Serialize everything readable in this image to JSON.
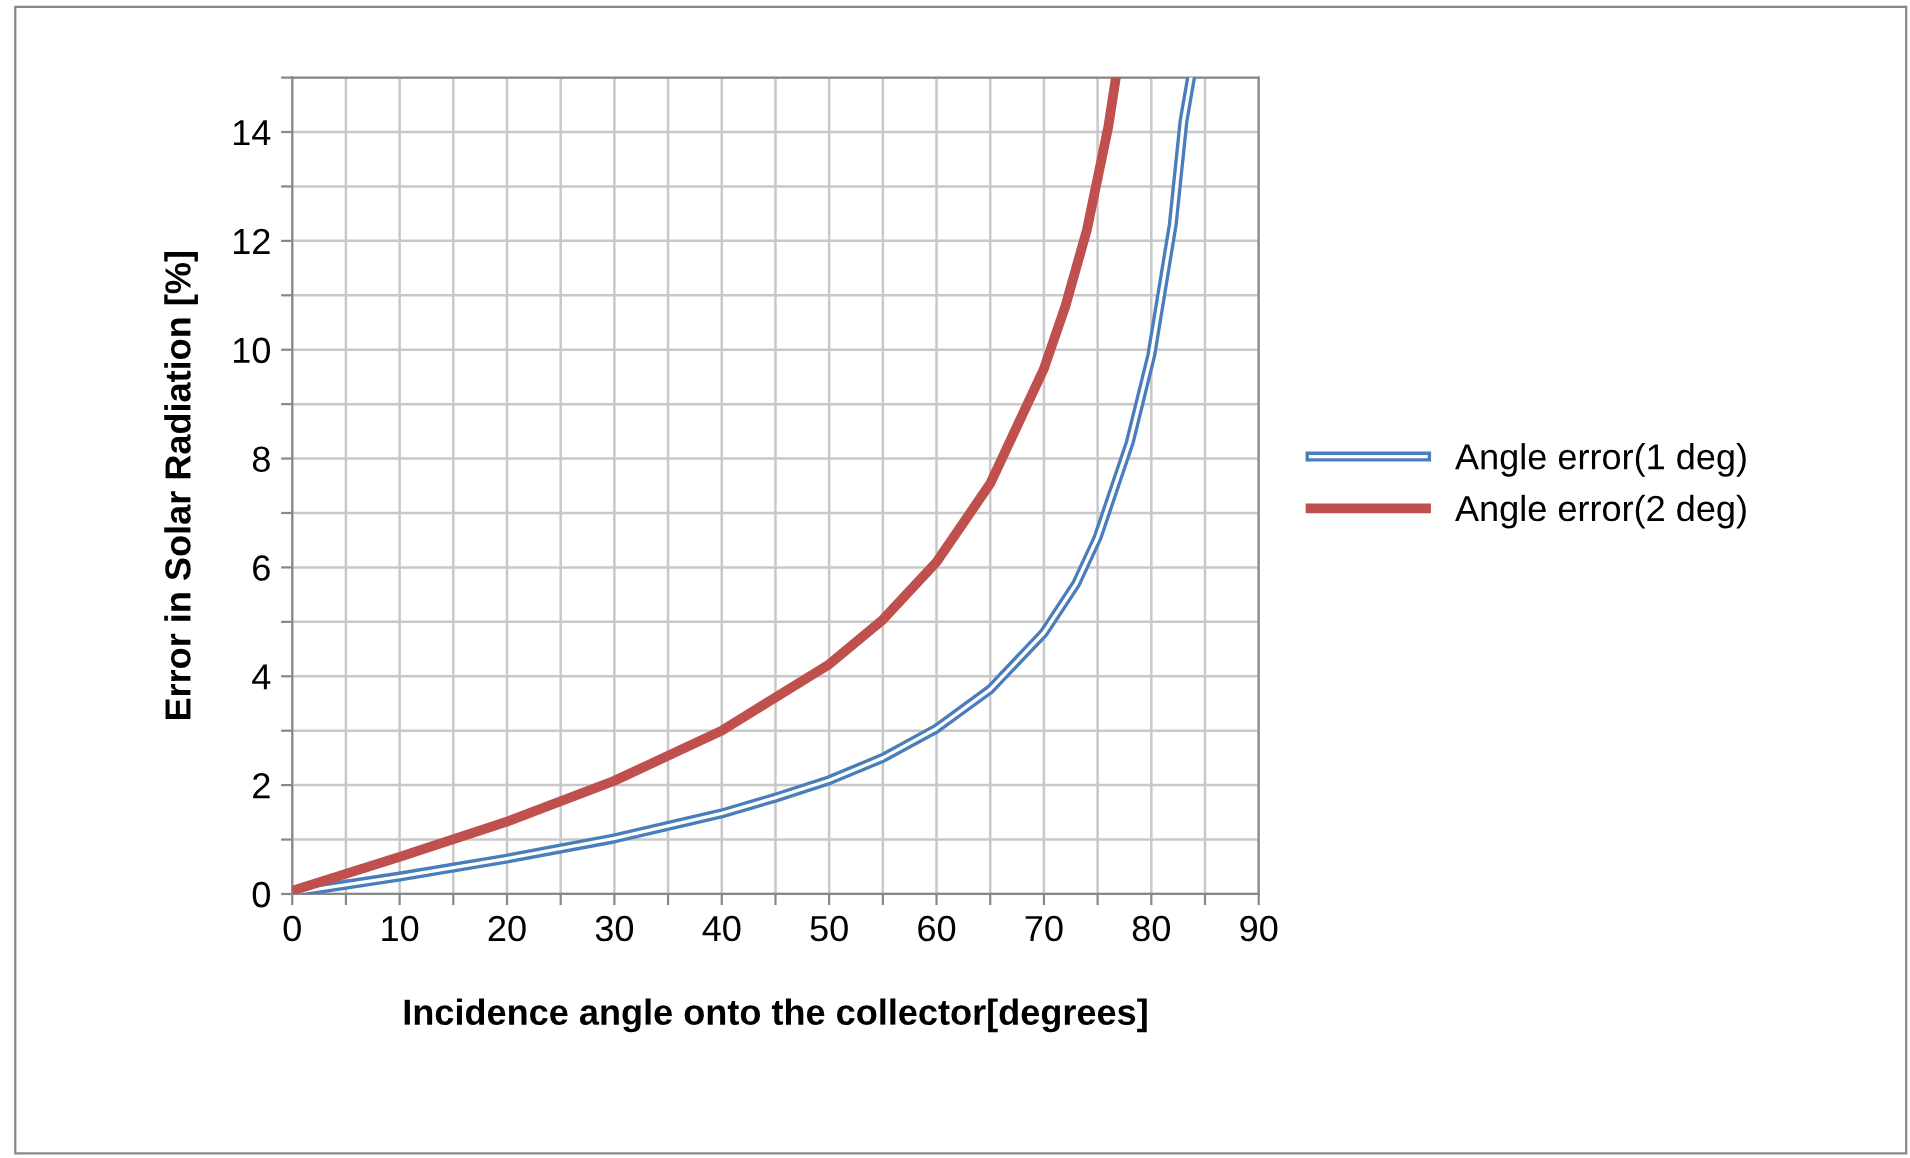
{
  "chart_data": {
    "type": "line",
    "xlabel": "Incidence angle onto the collector[degrees]",
    "ylabel": "Error in Solar Radiation [%]",
    "xlim": [
      0,
      90
    ],
    "ylim": [
      0,
      15
    ],
    "xticks": [
      0,
      {
        "value": 5,
        "label": null
      },
      10,
      {
        "value": 15,
        "label": null
      },
      20,
      {
        "value": 25,
        "label": null
      },
      30,
      {
        "value": 35,
        "label": null
      },
      40,
      {
        "value": 45,
        "label": null
      },
      50,
      {
        "value": 55,
        "label": null
      },
      60,
      {
        "value": 65,
        "label": null
      },
      70,
      {
        "value": 75,
        "label": null
      },
      80,
      {
        "value": 85,
        "label": null
      },
      90
    ],
    "yticks": [
      0,
      {
        "value": 1,
        "label": null
      },
      2,
      {
        "value": 3,
        "label": null
      },
      4,
      {
        "value": 5,
        "label": null
      },
      6,
      {
        "value": 7,
        "label": null
      },
      8,
      {
        "value": 9,
        "label": null
      },
      10,
      {
        "value": 11,
        "label": null
      },
      12,
      {
        "value": 13,
        "label": null
      },
      14,
      {
        "value": 15,
        "label": null
      }
    ],
    "grid": true,
    "legend": "right",
    "marker": "none",
    "line_style": "solid",
    "series": [
      {
        "name": "Angle error(1 deg)",
        "color": "#4a7ebb",
        "x": [
          0,
          10,
          20,
          30,
          40,
          45,
          50,
          55,
          60,
          65,
          70,
          73,
          75,
          78,
          80,
          82,
          83,
          83.7
        ],
        "values": [
          0.02,
          0.32,
          0.65,
          1.02,
          1.48,
          1.77,
          2.09,
          2.5,
          3.04,
          3.76,
          4.8,
          5.7,
          6.55,
          8.3,
          9.9,
          12.3,
          14.2,
          15.0
        ]
      },
      {
        "name": "Angle error(2 deg)",
        "color": "#c0504d",
        "x": [
          0,
          10,
          20,
          30,
          40,
          50,
          55,
          60,
          65,
          70,
          72,
          74,
          76,
          76.7
        ],
        "values": [
          0.06,
          0.68,
          1.33,
          2.08,
          3.0,
          4.22,
          5.04,
          6.1,
          7.54,
          9.65,
          10.8,
          12.2,
          14.1,
          15.0
        ]
      }
    ]
  }
}
